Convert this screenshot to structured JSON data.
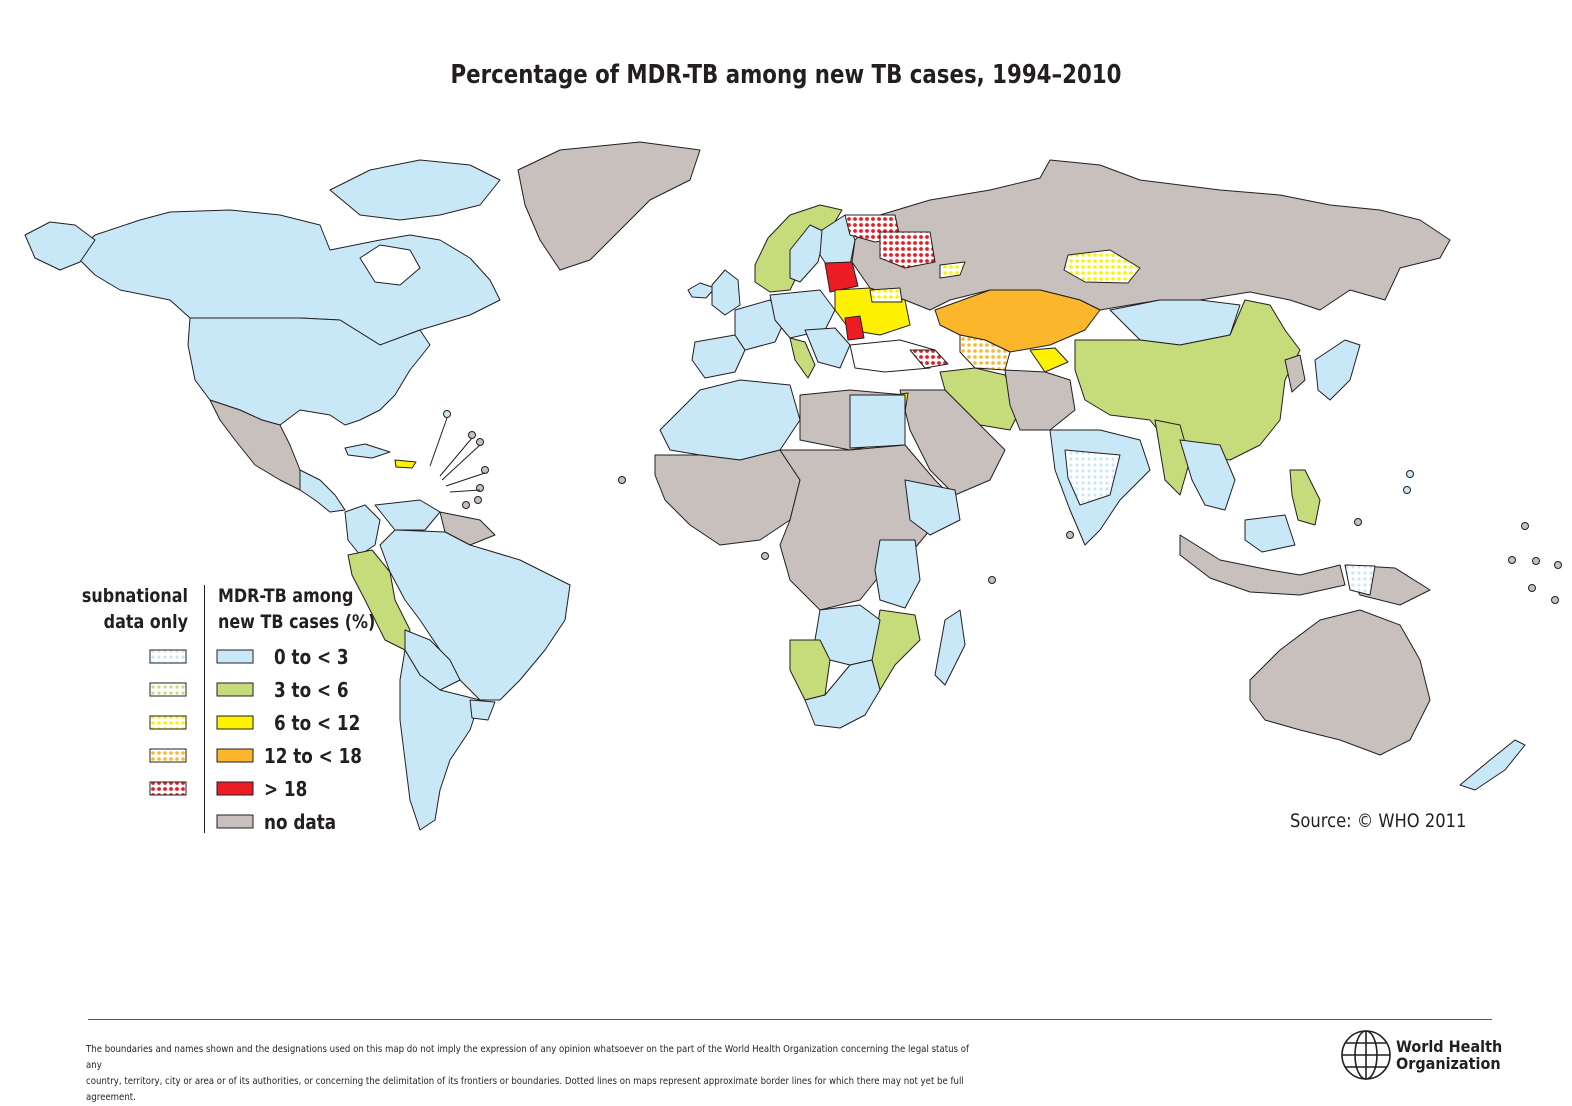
{
  "title": "Percentage of MDR-TB among new TB cases, 1994–2010",
  "legend": {
    "subnational_title_lines": [
      "subnational",
      "data only"
    ],
    "main_title_lines": [
      "MDR-TB among",
      "new TB cases (%)"
    ],
    "categories": [
      {
        "label": "0 to < 3",
        "color": "#c8e8f8"
      },
      {
        "label": "3 to < 6",
        "color": "#c6db7a"
      },
      {
        "label": "6 to < 12",
        "color": "#fff200"
      },
      {
        "label": "12 to < 18",
        "color": "#fbb62b"
      },
      {
        "label": "> 18",
        "color": "#ed1c24"
      },
      {
        "label": "no data",
        "color": "#c7c0bd"
      }
    ],
    "subnational_pattern_colors": [
      "#c8e8f8",
      "#c6db7a",
      "#fff200",
      "#fbb62b",
      "#ed1c24"
    ]
  },
  "colors": {
    "ocean": "#ffffff",
    "not_applicable": "#ffffff",
    "border": "#231f20"
  },
  "source": "Source: © WHO 2011",
  "footer": {
    "disclaimer_lines": [
      "The boundaries and names shown and the designations used on this map do not imply the expression of any opinion whatsoever on the part of the World Health Organization concerning the legal status of any",
      "country, territory, city or area or of its authorities, or concerning the delimitation of its frontiers or boundaries.  Dotted lines on maps represent approximate border lines for which there may not yet be full agreement."
    ],
    "logo_name_lines": [
      "World Health",
      "Organization"
    ],
    "logo_icon": "who-emblem-icon"
  }
}
